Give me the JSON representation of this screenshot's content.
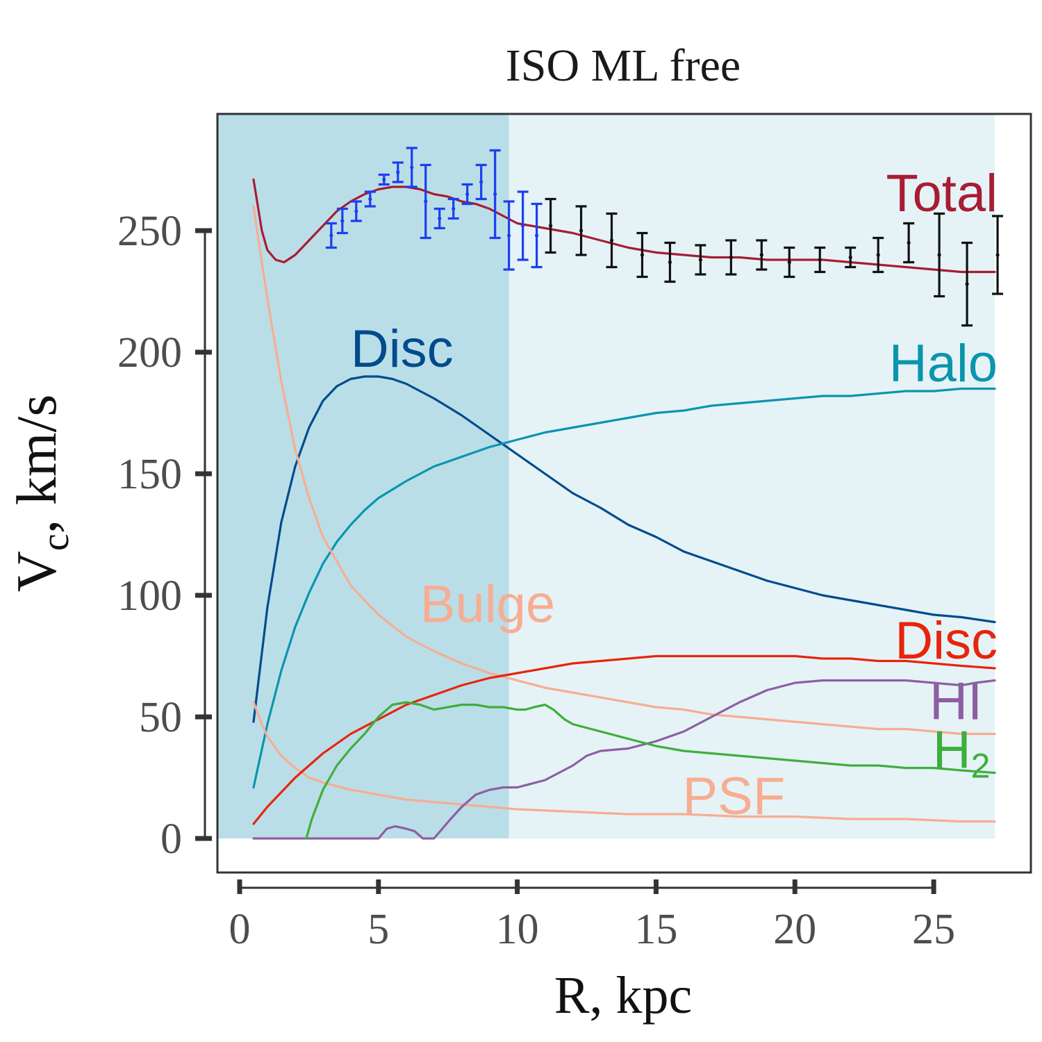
{
  "chart_data": {
    "type": "line",
    "title": "ISO ML free",
    "xlabel": "R, kpc",
    "ylabel_main": "V",
    "ylabel_sub": "c",
    "ylabel_rest": ", km/s",
    "xlim": [
      -0.8,
      28.5
    ],
    "ylim": [
      -14,
      298
    ],
    "xticks": [
      0,
      5,
      10,
      15,
      20,
      25
    ],
    "yticks": [
      0,
      50,
      100,
      150,
      200,
      250
    ],
    "grid": false,
    "shaded_regions": [
      {
        "x0": -0.8,
        "x1": 9.7,
        "color": "#badee8"
      },
      {
        "x0": 9.7,
        "x1": 27.2,
        "color": "#e5f3f7"
      }
    ],
    "series": [
      {
        "name": "Total",
        "label": "Total",
        "color": "#a81c33",
        "x": [
          0.5,
          0.8,
          1.0,
          1.3,
          1.6,
          2.0,
          2.5,
          3.0,
          3.5,
          4.0,
          4.5,
          5.0,
          5.5,
          6.0,
          6.5,
          7.0,
          7.5,
          8.0,
          8.5,
          9.0,
          9.5,
          10.0,
          10.5,
          11.0,
          12.0,
          13.0,
          14.0,
          15.0,
          16.0,
          17.0,
          18.0,
          19.0,
          20.0,
          21.0,
          22.0,
          23.0,
          24.0,
          25.0,
          26.0,
          26.5,
          27.2
        ],
        "y": [
          271,
          250,
          242,
          238,
          237,
          240,
          246,
          252,
          258,
          262,
          265,
          267,
          268,
          268,
          267,
          265,
          264,
          262,
          261,
          259,
          256,
          253,
          252,
          251,
          249,
          246,
          243,
          241,
          240,
          239,
          239,
          238,
          238,
          238,
          237,
          236,
          235,
          234,
          233,
          233,
          233
        ]
      },
      {
        "name": "Disc (stellar)",
        "label": "Disc",
        "color": "#004b8d",
        "x": [
          0.5,
          1.0,
          1.5,
          2.0,
          2.5,
          3.0,
          3.5,
          4.0,
          4.5,
          5.0,
          5.5,
          6.0,
          7.0,
          8.0,
          9.0,
          10.0,
          11.0,
          12.0,
          13.0,
          14.0,
          15.0,
          16.0,
          17.0,
          18.0,
          19.0,
          20.0,
          21.0,
          22.0,
          23.0,
          24.0,
          25.0,
          26.0,
          27.2
        ],
        "y": [
          48,
          95,
          130,
          153,
          169,
          180,
          186,
          189,
          190,
          190,
          189,
          187,
          181,
          174,
          166,
          158,
          150,
          142,
          136,
          129,
          124,
          118,
          114,
          110,
          106,
          103,
          100,
          98,
          96,
          94,
          92,
          91,
          89
        ]
      },
      {
        "name": "Halo",
        "label": "Halo",
        "color": "#0a95ad",
        "x": [
          0.5,
          1.0,
          1.5,
          2.0,
          2.5,
          3.0,
          3.5,
          4.0,
          4.5,
          5.0,
          6.0,
          7.0,
          8.0,
          9.0,
          10.0,
          11.0,
          12.0,
          13.0,
          14.0,
          15.0,
          16.0,
          17.0,
          18.0,
          19.0,
          20.0,
          21.0,
          22.0,
          23.0,
          24.0,
          25.0,
          26.0,
          27.2
        ],
        "y": [
          21,
          47,
          69,
          87,
          101,
          113,
          122,
          129,
          135,
          140,
          147,
          153,
          157,
          161,
          164,
          167,
          169,
          171,
          173,
          175,
          176,
          178,
          179,
          180,
          181,
          182,
          182,
          183,
          184,
          184,
          185,
          185
        ]
      },
      {
        "name": "Bulge",
        "label": "Bulge",
        "color": "#f7ad92",
        "x": [
          0.5,
          0.8,
          1.0,
          1.5,
          2.0,
          2.5,
          3.0,
          4.0,
          5.0,
          6.0,
          7.0,
          8.0,
          9.0,
          10.0,
          11.0,
          12.0,
          13.0,
          14.0,
          15.0,
          16.0,
          17.0,
          18.0,
          19.0,
          20.0,
          21.0,
          22.0,
          23.0,
          24.0,
          25.0,
          26.0,
          27.2
        ],
        "y": [
          260,
          237,
          222,
          188,
          160,
          140,
          124,
          104,
          92,
          83,
          77,
          72,
          68,
          65,
          62,
          60,
          58,
          56,
          54,
          53,
          51,
          50,
          49,
          48,
          47,
          46,
          45,
          45,
          44,
          43,
          43
        ]
      },
      {
        "name": "PSF",
        "label": "PSF",
        "color": "#f7ad92",
        "x": [
          0.5,
          0.8,
          1.0,
          1.5,
          2.0,
          2.5,
          3.0,
          4.0,
          5.0,
          6.0,
          7.0,
          8.0,
          9.0,
          10.0,
          12.0,
          14.0,
          16.0,
          18.0,
          20.0,
          22.0,
          24.0,
          26.0,
          27.2
        ],
        "y": [
          56,
          47,
          42,
          34,
          29,
          25,
          23,
          20,
          18,
          16,
          15,
          14,
          13,
          12,
          11,
          10,
          10,
          9,
          9,
          8,
          8,
          7,
          7
        ]
      },
      {
        "name": "Disc (gas)",
        "label": "Disc",
        "color": "#e8240c",
        "x": [
          0.5,
          1.0,
          1.5,
          2.0,
          3.0,
          4.0,
          5.0,
          6.0,
          7.0,
          8.0,
          9.0,
          10.0,
          11.0,
          12.0,
          13.0,
          14.0,
          15.0,
          16.0,
          17.0,
          18.0,
          19.0,
          20.0,
          21.0,
          22.0,
          23.0,
          24.0,
          25.0,
          26.0,
          27.2
        ],
        "y": [
          6,
          13,
          19,
          25,
          35,
          43,
          49,
          55,
          59,
          63,
          66,
          68,
          70,
          72,
          73,
          74,
          75,
          75,
          75,
          75,
          75,
          75,
          74,
          74,
          73,
          73,
          72,
          71,
          70
        ]
      },
      {
        "name": "HI",
        "label": "HI",
        "color": "#8e5ea2",
        "x": [
          0.5,
          2.0,
          4.0,
          5.0,
          5.3,
          5.6,
          6.0,
          6.3,
          6.6,
          7.0,
          7.3,
          7.6,
          8.0,
          8.5,
          9.0,
          9.5,
          10.0,
          11.0,
          12.0,
          12.5,
          13.0,
          14.0,
          15.0,
          16.0,
          17.0,
          18.0,
          19.0,
          20.0,
          21.0,
          22.0,
          23.0,
          24.0,
          25.0,
          26.0,
          26.5,
          27.2
        ],
        "y": [
          0,
          0,
          0,
          0,
          4,
          5,
          4,
          3,
          0,
          0,
          4,
          8,
          13,
          18,
          20,
          21,
          21,
          24,
          30,
          34,
          36,
          37,
          40,
          44,
          50,
          56,
          61,
          64,
          65,
          65,
          65,
          65,
          64,
          63,
          64,
          65
        ]
      },
      {
        "name": "H2",
        "label": "H",
        "label_sub": "2",
        "color": "#3fae3d",
        "x": [
          2.4,
          2.6,
          3.0,
          3.5,
          4.0,
          4.5,
          5.0,
          5.5,
          6.0,
          6.5,
          7.0,
          7.5,
          8.0,
          8.5,
          9.0,
          9.5,
          10.0,
          10.3,
          10.6,
          11.0,
          11.3,
          11.7,
          12.0,
          13.0,
          14.0,
          15.0,
          16.0,
          17.0,
          18.0,
          19.0,
          20.0,
          21.0,
          22.0,
          23.0,
          24.0,
          25.0,
          26.0,
          27.2
        ],
        "y": [
          0,
          8,
          20,
          30,
          37,
          43,
          50,
          55,
          56,
          55,
          53,
          54,
          55,
          55,
          54,
          54,
          53,
          53,
          54,
          55,
          53,
          49,
          47,
          44,
          41,
          38,
          36,
          35,
          34,
          33,
          32,
          31,
          30,
          30,
          29,
          29,
          28,
          27
        ]
      }
    ],
    "observations": [
      {
        "name": "blue data",
        "color": "#1b3ff0",
        "points": [
          {
            "x": 3.3,
            "y": 248,
            "err": 5
          },
          {
            "x": 3.7,
            "y": 254,
            "err": 5
          },
          {
            "x": 4.2,
            "y": 258,
            "err": 4
          },
          {
            "x": 4.7,
            "y": 263,
            "err": 3
          },
          {
            "x": 5.2,
            "y": 271,
            "err": 2
          },
          {
            "x": 5.7,
            "y": 274,
            "err": 4
          },
          {
            "x": 6.2,
            "y": 276,
            "err": 8
          },
          {
            "x": 6.7,
            "y": 262,
            "err": 15
          },
          {
            "x": 7.2,
            "y": 255,
            "err": 4
          },
          {
            "x": 7.7,
            "y": 259,
            "err": 4
          },
          {
            "x": 8.2,
            "y": 265,
            "err": 4
          },
          {
            "x": 8.7,
            "y": 270,
            "err": 7
          },
          {
            "x": 9.2,
            "y": 265,
            "err": 18
          },
          {
            "x": 9.7,
            "y": 248,
            "err": 14
          },
          {
            "x": 10.2,
            "y": 252,
            "err": 14
          },
          {
            "x": 10.7,
            "y": 248,
            "err": 13
          }
        ]
      },
      {
        "name": "black data",
        "color": "#111111",
        "points": [
          {
            "x": 11.2,
            "y": 252,
            "err": 11
          },
          {
            "x": 12.3,
            "y": 250,
            "err": 10
          },
          {
            "x": 13.4,
            "y": 246,
            "err": 11
          },
          {
            "x": 14.5,
            "y": 240,
            "err": 9
          },
          {
            "x": 15.5,
            "y": 237,
            "err": 8
          },
          {
            "x": 16.6,
            "y": 238,
            "err": 6
          },
          {
            "x": 17.7,
            "y": 239,
            "err": 7
          },
          {
            "x": 18.8,
            "y": 240,
            "err": 6
          },
          {
            "x": 19.8,
            "y": 237,
            "err": 6
          },
          {
            "x": 20.9,
            "y": 238,
            "err": 5
          },
          {
            "x": 22.0,
            "y": 239,
            "err": 4
          },
          {
            "x": 23.0,
            "y": 240,
            "err": 7
          },
          {
            "x": 24.1,
            "y": 245,
            "err": 8
          },
          {
            "x": 25.2,
            "y": 240,
            "err": 17
          },
          {
            "x": 26.2,
            "y": 228,
            "err": 17
          },
          {
            "x": 27.3,
            "y": 240,
            "err": 16
          }
        ]
      }
    ],
    "annotations": [
      {
        "text": "Total",
        "color": "#a81c33",
        "x": 27.3,
        "y": 258,
        "anchor": "end"
      },
      {
        "text": "Disc",
        "color": "#004b8d",
        "x": 4.0,
        "y": 194,
        "anchor": "start"
      },
      {
        "text": "Halo",
        "color": "#0a95ad",
        "x": 27.3,
        "y": 188,
        "anchor": "end"
      },
      {
        "text": "Bulge",
        "color": "#f7ad92",
        "x": 6.5,
        "y": 89,
        "anchor": "start"
      },
      {
        "text": "Disc",
        "color": "#e8240c",
        "x": 27.3,
        "y": 74,
        "anchor": "end"
      },
      {
        "text": "HI",
        "color": "#8e5ea2",
        "x": 25.8,
        "y": 49,
        "anchor": "middle"
      },
      {
        "text": "PSF",
        "color": "#f7ad92",
        "x": 17.8,
        "y": 10,
        "anchor": "middle"
      }
    ]
  }
}
